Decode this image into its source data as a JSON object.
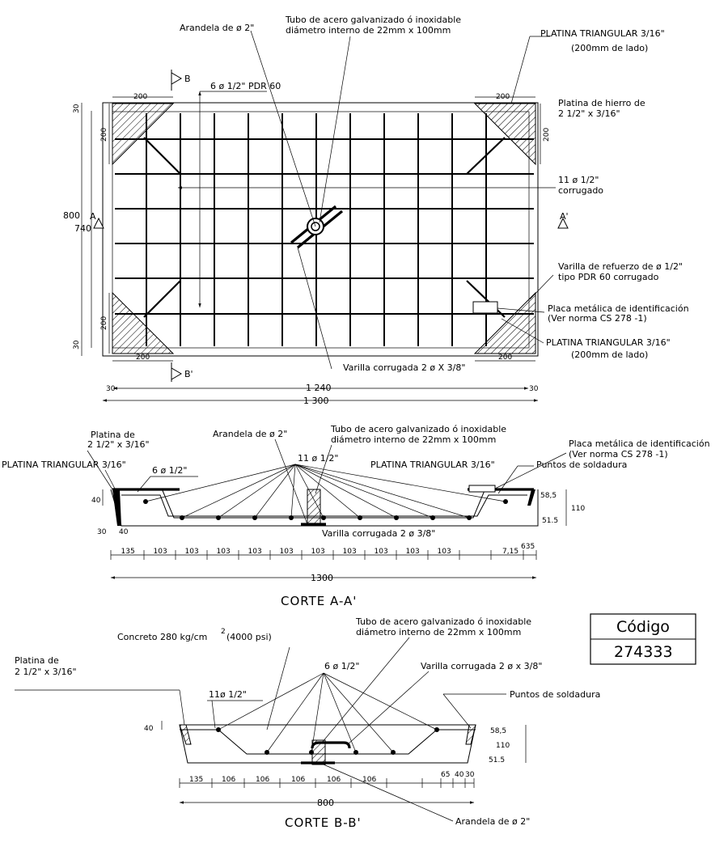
{
  "plan": {
    "washer": "Arandela de ø 2\"",
    "tube_line1": "Tubo de acero galvanizado ó inoxidable",
    "tube_line2": "diámetro interno de 22mm x 100mm",
    "tri_plate": "PLATINA TRIANGULAR 3/16\"",
    "tri_side": "(200mm de lado)",
    "iron_plate_1": "Platina de hierro de",
    "iron_plate_2": "2 1/2\" x 3/16\"",
    "bars_6": "6 ø 1/2\"  PDR 60",
    "bars_11_1": "11 ø 1/2\"",
    "bars_11_2": "corrugado",
    "reinf_1": "Varilla de refuerzo de ø 1/2\"",
    "reinf_2": "tipo PDR 60 corrugado",
    "id_plate_1": "Placa metálica de identificación",
    "id_plate_2": "(Ver norma CS 278 -1)",
    "tri_plate_2": "PLATINA TRIANGULAR 3/16\"",
    "tri_side_2": "(200mm de lado)",
    "corr_rod": "Varilla corrugada 2 ø X 3/8\"",
    "sec_b": "B",
    "sec_b2": "B'",
    "sec_a": "A",
    "sec_a2": "A'",
    "dim_200": "200",
    "dim_30": "30",
    "dim_800": "800",
    "dim_740": "740",
    "dim_1240": "1 240",
    "dim_1300": "1 300"
  },
  "section_a": {
    "plate_1": "Platina de",
    "plate_2": "2 1/2\" x 3/16\"",
    "washer": "Arandela de ø 2\"",
    "tube_1": "Tubo de acero galvanizado ó inoxidable",
    "tube_2": "diámetro interno de 22mm x 100mm",
    "id_plate_1": "Placa metálica de identificación",
    "id_plate_2": "(Ver norma CS 278 -1)",
    "tri_left": "PLATINA TRIANGULAR 3/16\"",
    "bars_6": "6 ø 1/2\"",
    "bars_11": "11 ø 1/2\"",
    "tri_right": "PLATINA TRIANGULAR 3/16\"",
    "weld": "Puntos de soldadura",
    "corr_rod": "Varilla corrugada 2 ø 3/8\"",
    "dim_40": "40",
    "dim_30": "30",
    "dim_40b": "40",
    "dim_58_5": "58,5",
    "dim_51_5": "51.5",
    "dim_110": "110",
    "dims": [
      "135",
      "103",
      "103",
      "103",
      "103",
      "103",
      "103",
      "103",
      "103",
      "103",
      "103"
    ],
    "dim_7_15": "7,15",
    "dim_635": "635",
    "dim_total": "1300",
    "title": "CORTE A-A'"
  },
  "code_box": {
    "label": "Código",
    "value": "274333"
  },
  "section_b": {
    "concrete": "Concreto 280 kg/cm",
    "concrete_sup": "2",
    "concrete_psi": "(4000 psi)",
    "tube_1": "Tubo de acero galvanizado ó inoxidable",
    "tube_2": "diámetro interno de 22mm x 100mm",
    "plate_1": "Platina de",
    "plate_2": "2 1/2\" x 3/16\"",
    "bars_6": "6 ø 1/2\"",
    "corr_rod": "Varilla corrugada 2 ø x 3/8\"",
    "weld": "Puntos de soldadura",
    "bars_11": "11ø 1/2\"",
    "dim_40": "40",
    "dim_58_5": "58,5",
    "dim_110": "110",
    "dim_51_5": "51.5",
    "dims": [
      "135",
      "106",
      "106",
      "106",
      "106",
      "106"
    ],
    "dim_65": "65",
    "dim_40b": "40",
    "dim_30": "30",
    "dim_total": "800",
    "title": "CORTE B-B'",
    "washer": "Arandela de ø 2\""
  }
}
